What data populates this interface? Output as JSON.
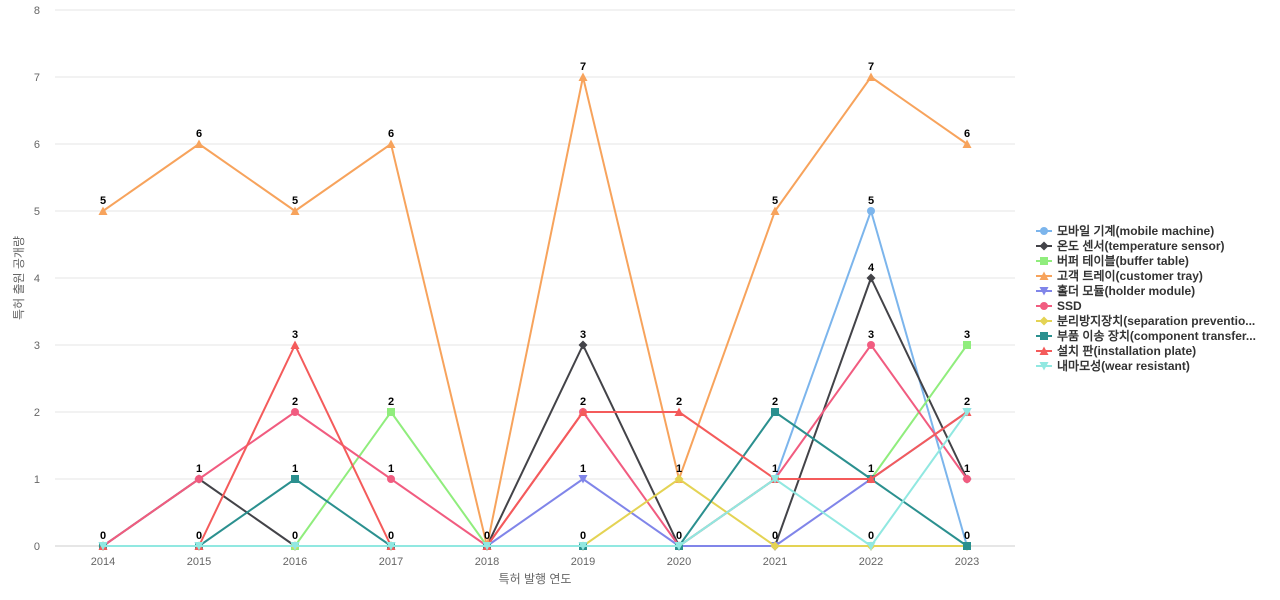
{
  "chart_data": {
    "type": "line",
    "xlabel": "특허 발행 연도",
    "ylabel": "특허 출원 공개량",
    "ylim": [
      0,
      8
    ],
    "yticks": [
      0,
      1,
      2,
      3,
      4,
      5,
      6,
      7,
      8
    ],
    "grid": true,
    "legend_position": "right",
    "categories": [
      "2014",
      "2015",
      "2016",
      "2017",
      "2018",
      "2019",
      "2020",
      "2021",
      "2022",
      "2023"
    ],
    "series": [
      {
        "name": "모바일 기계(mobile machine)",
        "color": "#7cb5ec",
        "marker": "circle",
        "values": [
          0,
          0,
          0,
          0,
          0,
          0,
          0,
          1,
          5,
          0
        ]
      },
      {
        "name": "온도 센서(temperature sensor)",
        "color": "#434348",
        "marker": "diamond",
        "values": [
          0,
          1,
          0,
          0,
          0,
          3,
          0,
          0,
          4,
          1
        ]
      },
      {
        "name": "버퍼 테이블(buffer table)",
        "color": "#90ed7d",
        "marker": "square",
        "values": [
          0,
          0,
          0,
          2,
          0,
          0,
          0,
          1,
          1,
          3
        ]
      },
      {
        "name": "고객 트레이(customer tray)",
        "color": "#f7a35c",
        "marker": "triangle",
        "values": [
          5,
          6,
          5,
          6,
          0,
          7,
          1,
          5,
          7,
          6
        ]
      },
      {
        "name": "홀더 모듈(holder module)",
        "color": "#8085e9",
        "marker": "triangle-down",
        "values": [
          0,
          0,
          0,
          0,
          0,
          1,
          0,
          0,
          1,
          2
        ]
      },
      {
        "name": "SSD",
        "color": "#f15c80",
        "marker": "circle",
        "values": [
          0,
          1,
          2,
          1,
          0,
          2,
          0,
          1,
          3,
          1
        ]
      },
      {
        "name": "분리방지장치(separation preventio...",
        "color": "#e4d354",
        "marker": "diamond",
        "values": [
          0,
          0,
          0,
          0,
          0,
          0,
          1,
          0,
          0,
          0
        ]
      },
      {
        "name": "부품 이송 장치(component transfer...",
        "color": "#2b908f",
        "marker": "square",
        "values": [
          0,
          0,
          1,
          0,
          0,
          0,
          0,
          2,
          1,
          0
        ]
      },
      {
        "name": "설치 판(installation plate)",
        "color": "#f45b5b",
        "marker": "triangle",
        "values": [
          0,
          0,
          3,
          0,
          0,
          2,
          2,
          1,
          1,
          2
        ]
      },
      {
        "name": "내마모성(wear resistant)",
        "color": "#91e8e1",
        "marker": "triangle-down",
        "values": [
          0,
          0,
          0,
          0,
          0,
          0,
          0,
          1,
          0,
          2
        ]
      }
    ],
    "data_labels": [
      {
        "x": "2014",
        "value": 5
      },
      {
        "x": "2014",
        "value": 0
      },
      {
        "x": "2015",
        "value": 6
      },
      {
        "x": "2015",
        "value": 1
      },
      {
        "x": "2015",
        "value": 0
      },
      {
        "x": "2016",
        "value": 5
      },
      {
        "x": "2016",
        "value": 3
      },
      {
        "x": "2016",
        "value": 2
      },
      {
        "x": "2016",
        "value": 1
      },
      {
        "x": "2016",
        "value": 0
      },
      {
        "x": "2017",
        "value": 6
      },
      {
        "x": "2017",
        "value": 2
      },
      {
        "x": "2017",
        "value": 1
      },
      {
        "x": "2017",
        "value": 0
      },
      {
        "x": "2018",
        "value": 0
      },
      {
        "x": "2019",
        "value": 7
      },
      {
        "x": "2019",
        "value": 3
      },
      {
        "x": "2019",
        "value": 2
      },
      {
        "x": "2019",
        "value": 1
      },
      {
        "x": "2019",
        "value": 0
      },
      {
        "x": "2020",
        "value": 2
      },
      {
        "x": "2020",
        "value": 1
      },
      {
        "x": "2020",
        "value": 0
      },
      {
        "x": "2021",
        "value": 5
      },
      {
        "x": "2021",
        "value": 2
      },
      {
        "x": "2021",
        "value": 1
      },
      {
        "x": "2021",
        "value": 0
      },
      {
        "x": "2022",
        "value": 7
      },
      {
        "x": "2022",
        "value": 5
      },
      {
        "x": "2022",
        "value": 4
      },
      {
        "x": "2022",
        "value": 3
      },
      {
        "x": "2022",
        "value": 1
      },
      {
        "x": "2022",
        "value": 0
      },
      {
        "x": "2023",
        "value": 6
      },
      {
        "x": "2023",
        "value": 3
      },
      {
        "x": "2023",
        "value": 2
      },
      {
        "x": "2023",
        "value": 1
      },
      {
        "x": "2023",
        "value": 0
      }
    ]
  }
}
